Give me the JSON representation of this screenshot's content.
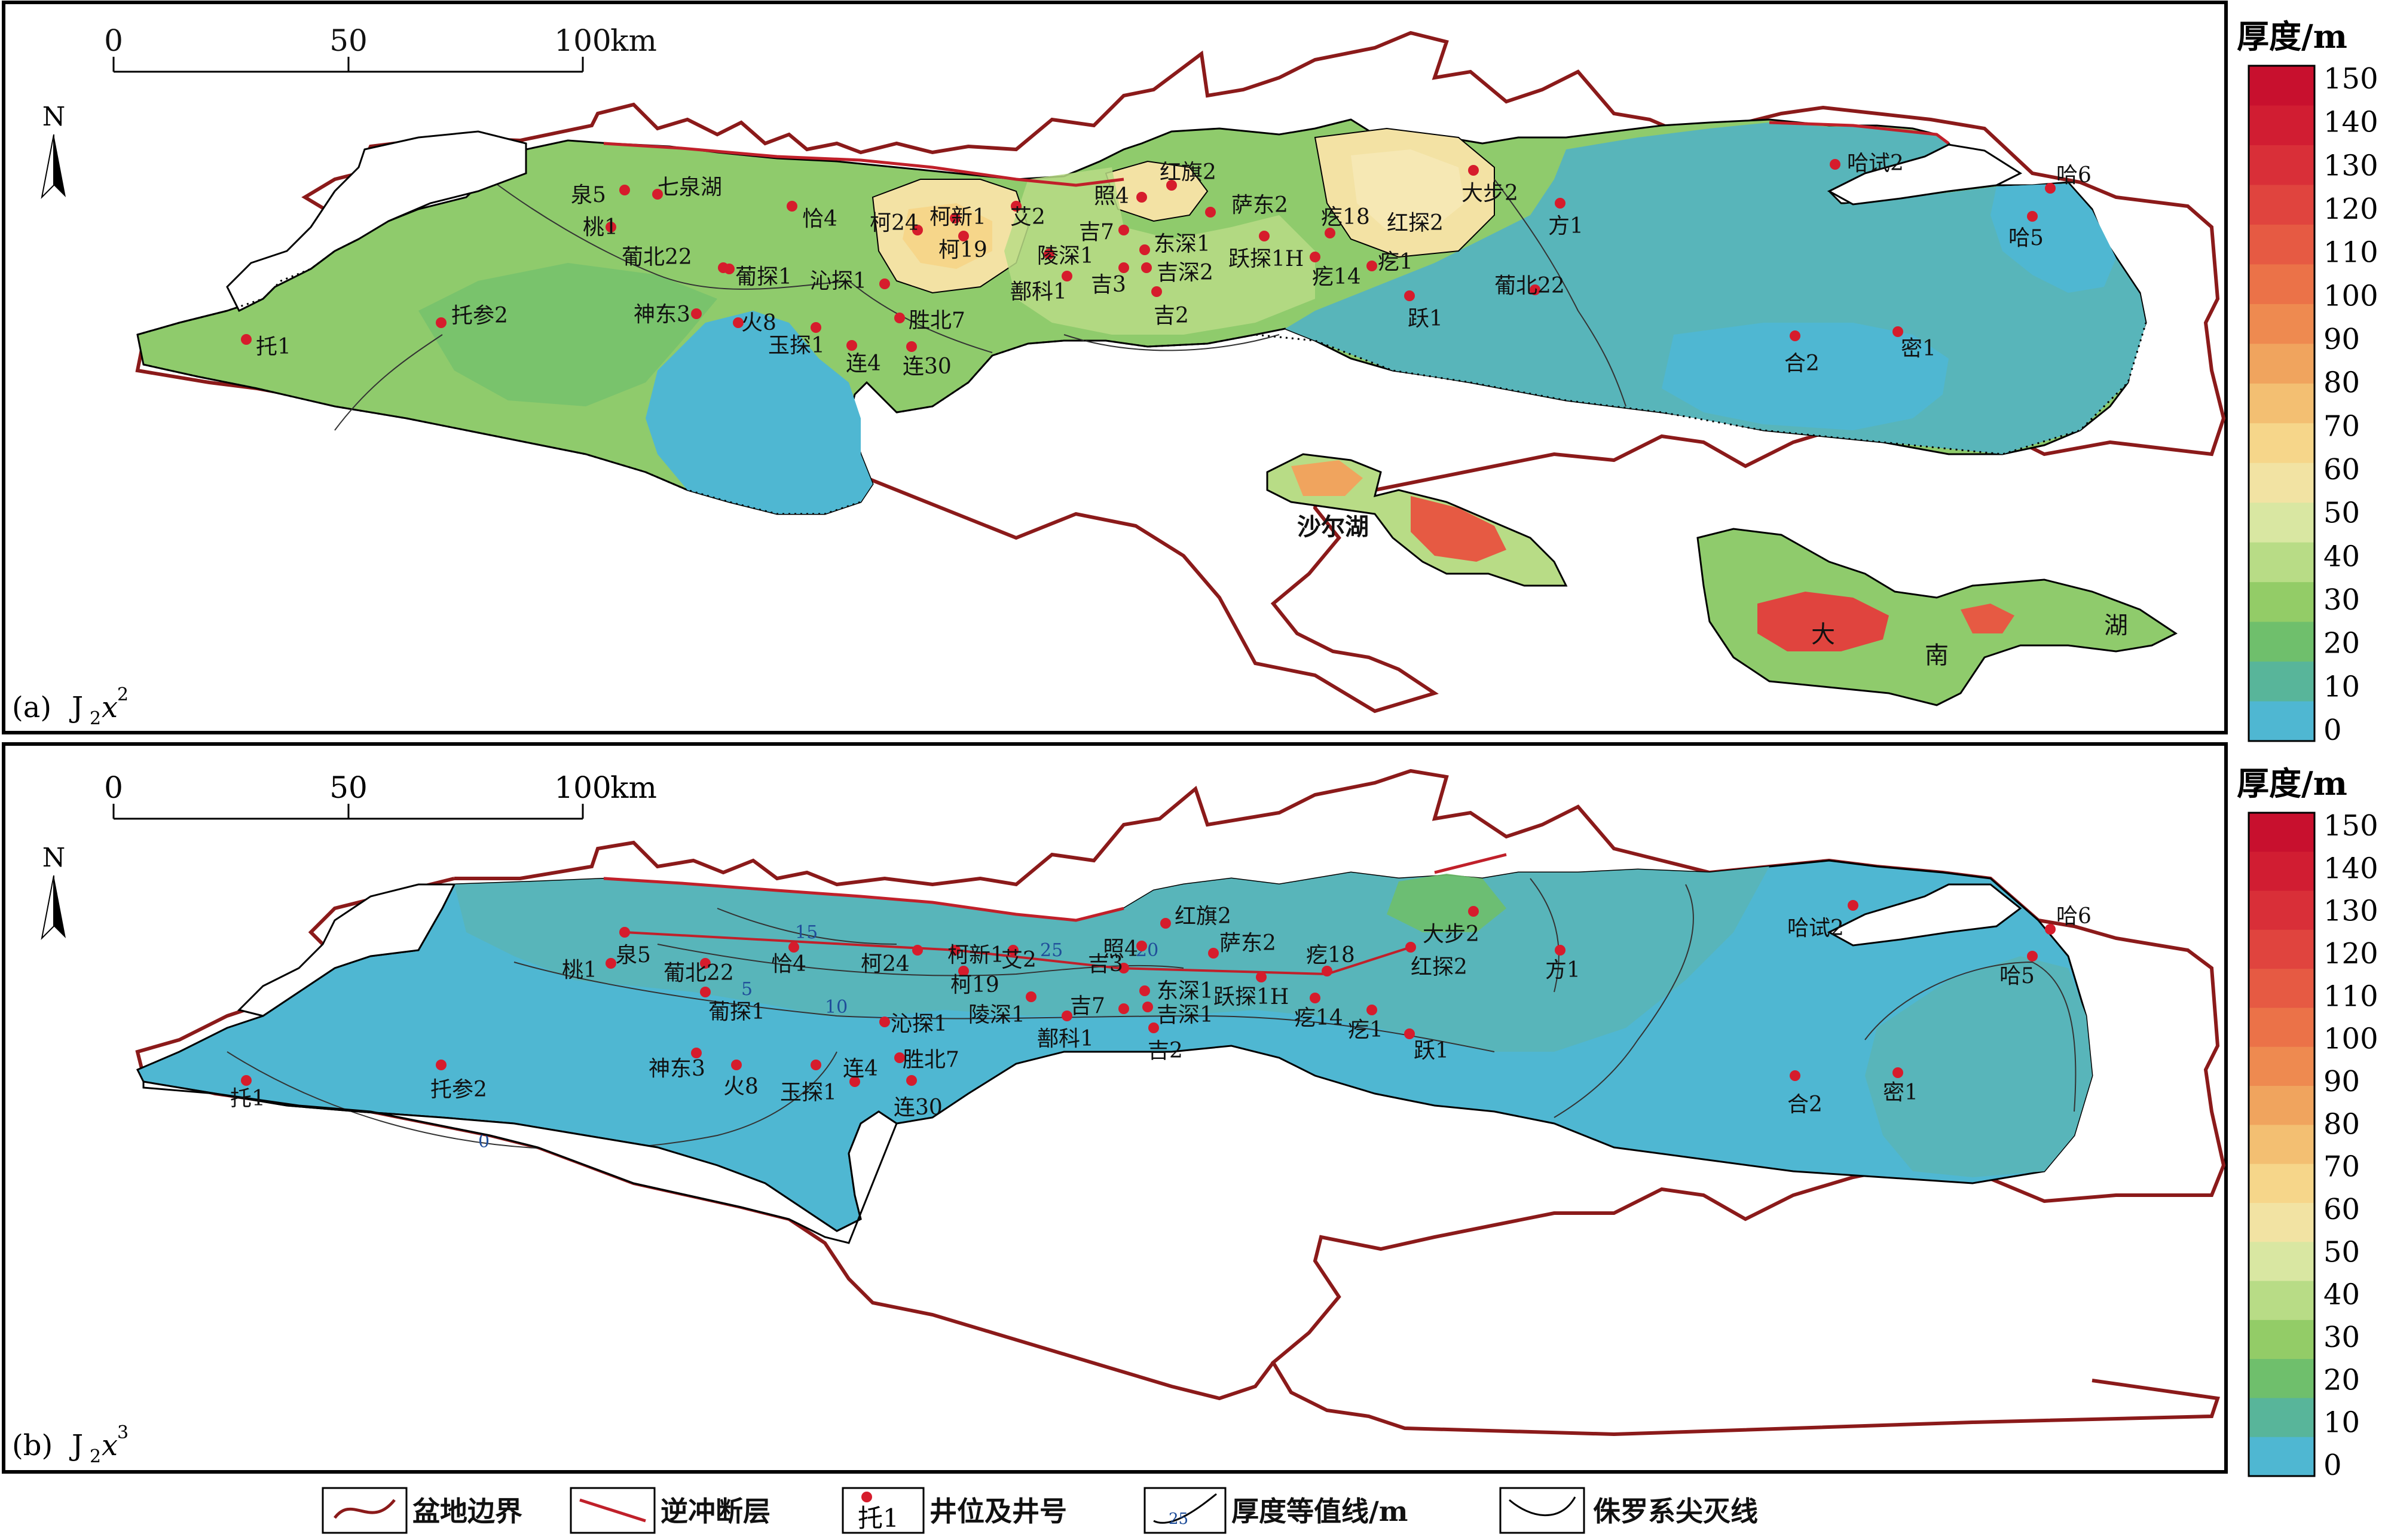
{
  "scalebar": {
    "ticks": [
      "0",
      "50",
      "100"
    ],
    "unit": "km"
  },
  "north": "N",
  "legend_title": "厚度/m",
  "legend_ticks": [
    "150",
    "140",
    "130",
    "120",
    "110",
    "100",
    "90",
    "80",
    "70",
    "60",
    "50",
    "40",
    "30",
    "20",
    "10",
    "0"
  ],
  "legend_colors": [
    "#c8102e",
    "#d11d32",
    "#d92f38",
    "#e0443e",
    "#e65a43",
    "#eb7248",
    "#ee8a50",
    "#f0a45e",
    "#f3bf72",
    "#f6d68a",
    "#f2e3a3",
    "#d9e7a2",
    "#b8dc86",
    "#93cc67",
    "#6fbf6c",
    "#58b59a",
    "#4fb7d2"
  ],
  "panels": [
    {
      "label": "(a)",
      "formation_base": "J",
      "formation_sub": "2",
      "formation_var": "x",
      "formation_sup": "2"
    },
    {
      "label": "(b)",
      "formation_base": "J",
      "formation_sub": "2",
      "formation_var": "x",
      "formation_sup": "3"
    }
  ],
  "wells_a": [
    "泉5",
    "七泉湖",
    "桃1",
    "葡北22",
    "葡探1",
    "神东3",
    "火8",
    "托参2",
    "托1",
    "恰4",
    "柯24",
    "柯新1",
    "柯19",
    "艾2",
    "沁探1",
    "陵深1",
    "鄯科1",
    "胜北7",
    "玉探1",
    "连4",
    "连30",
    "照4",
    "红旗2",
    "吉7",
    "东深1",
    "吉深2",
    "吉3",
    "吉2",
    "萨东2",
    "跃探1H",
    "疙18",
    "红探2",
    "疙14",
    "疙1",
    "跃1",
    "大步2",
    "方1",
    "葡北22",
    "哈试2",
    "哈6",
    "哈5",
    "合2",
    "密1"
  ],
  "wells_b": [
    "泉5",
    "桃1",
    "葡北22",
    "葡探1",
    "神东3",
    "火8",
    "托参2",
    "托1",
    "恰4",
    "柯24",
    "柯新1",
    "柯19",
    "艾2",
    "沁探1",
    "陵深1",
    "鄯科1",
    "胜北7",
    "玉探1",
    "连4",
    "连30",
    "照4",
    "红旗2",
    "吉7",
    "东深1",
    "吉深1",
    "吉3",
    "吉2",
    "萨东2",
    "跃探1H",
    "疙18",
    "红探2",
    "疙14",
    "疙1",
    "跃1",
    "大步2",
    "方1",
    "哈试2",
    "哈6",
    "哈5",
    "合2",
    "密1"
  ],
  "lake_labels": {
    "shaer": "沙尔湖",
    "da": "大",
    "nan": "南",
    "hu": "湖"
  },
  "contour_labels_b": [
    "15",
    "10",
    "5",
    "0",
    "20",
    "25"
  ],
  "bottom_legend": {
    "boundary": "盆地边界",
    "thrust": "逆冲断层",
    "well_sample": "托1",
    "well": "井位及井号",
    "contour_sample": "25",
    "contour": "厚度等值线/m",
    "pinchout": "侏罗系尖灭线"
  }
}
